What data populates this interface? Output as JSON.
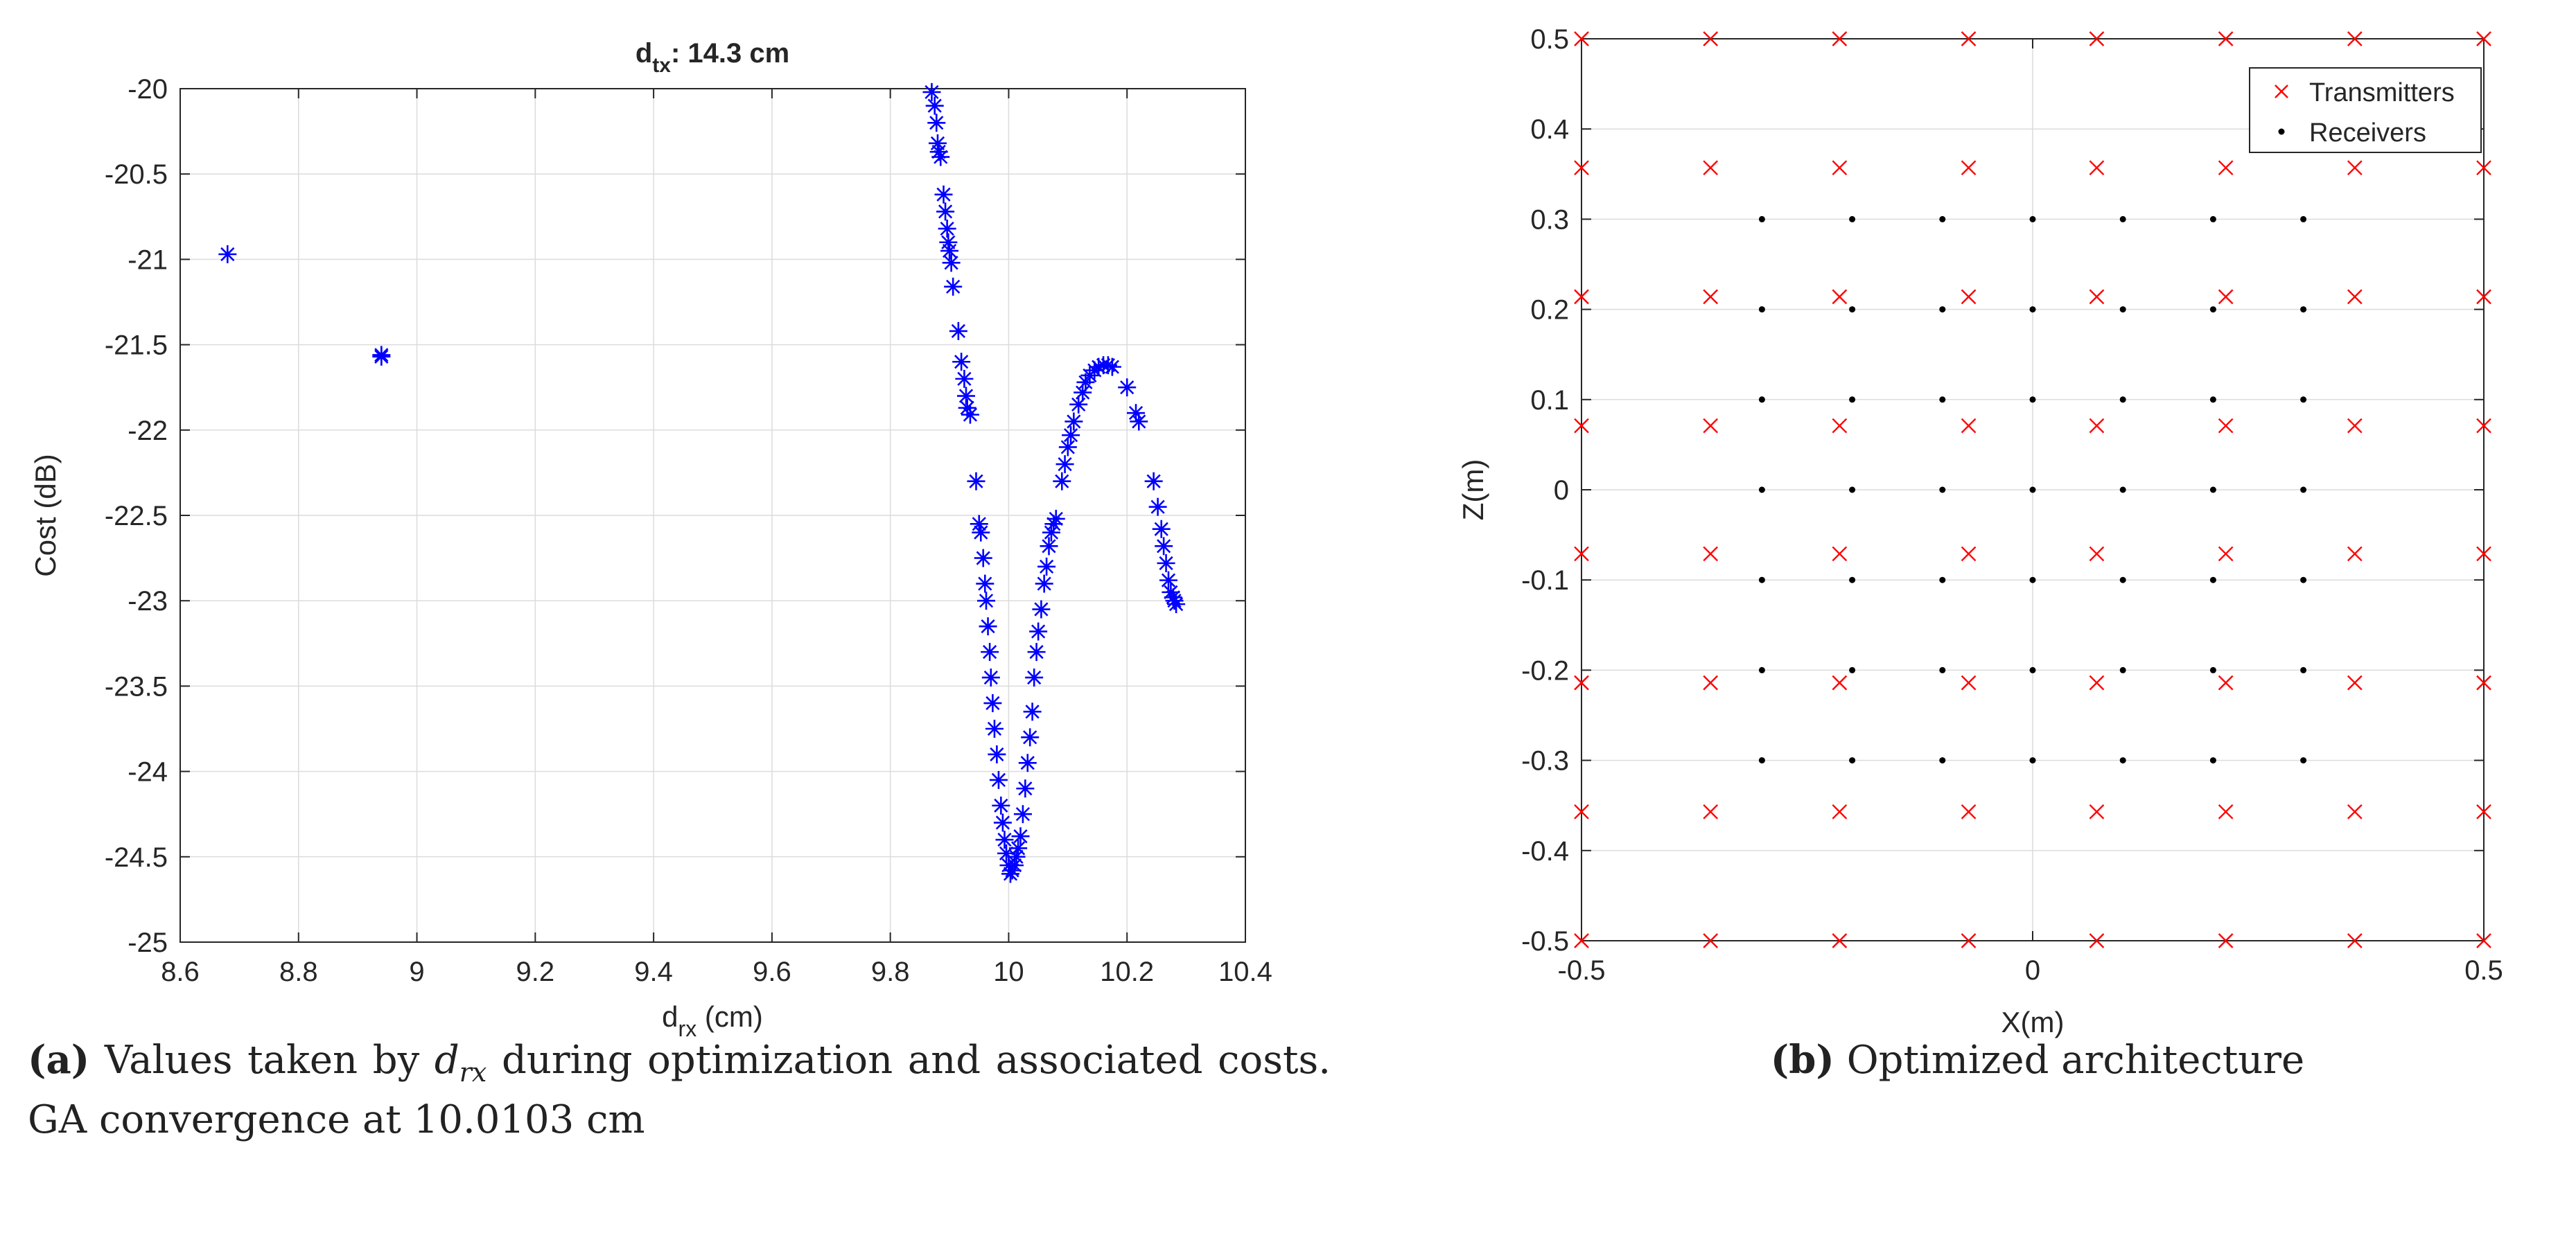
{
  "chart_data": [
    {
      "type": "scatter",
      "title_main": "d",
      "title_sub": "tx",
      "title_rest": ": 14.3 cm",
      "xlabel_main": "d",
      "xlabel_sub": "rx",
      "xlabel_rest": " (cm)",
      "ylabel": "Cost (dB)",
      "xlim": [
        8.6,
        10.4
      ],
      "ylim": [
        -25,
        -20
      ],
      "xticks": [
        "8.6",
        "8.8",
        "9",
        "9.2",
        "9.4",
        "9.6",
        "9.8",
        "10",
        "10.2",
        "10.4"
      ],
      "yticks": [
        "-20",
        "-20.5",
        "-21",
        "-21.5",
        "-22",
        "-22.5",
        "-23",
        "-23.5",
        "-24",
        "-24.5",
        "-25"
      ],
      "grid": true,
      "marker": "asterisk",
      "color": "#0000ff",
      "points": [
        [
          8.68,
          -20.97
        ],
        [
          8.94,
          -21.56
        ],
        [
          8.94,
          -21.57
        ],
        [
          9.87,
          -20.02
        ],
        [
          9.875,
          -20.1
        ],
        [
          9.878,
          -20.2
        ],
        [
          9.88,
          -20.32
        ],
        [
          9.882,
          -20.37
        ],
        [
          9.885,
          -20.4
        ],
        [
          9.89,
          -20.62
        ],
        [
          9.893,
          -20.72
        ],
        [
          9.896,
          -20.82
        ],
        [
          9.898,
          -20.9
        ],
        [
          9.9,
          -20.95
        ],
        [
          9.903,
          -21.02
        ],
        [
          9.906,
          -21.16
        ],
        [
          9.915,
          -21.42
        ],
        [
          9.92,
          -21.6
        ],
        [
          9.925,
          -21.7
        ],
        [
          9.928,
          -21.8
        ],
        [
          9.93,
          -21.87
        ],
        [
          9.935,
          -21.91
        ],
        [
          9.945,
          -22.3
        ],
        [
          9.95,
          -22.55
        ],
        [
          9.953,
          -22.6
        ],
        [
          9.957,
          -22.75
        ],
        [
          9.96,
          -22.9
        ],
        [
          9.962,
          -23.0
        ],
        [
          9.965,
          -23.15
        ],
        [
          9.968,
          -23.3
        ],
        [
          9.97,
          -23.45
        ],
        [
          9.973,
          -23.6
        ],
        [
          9.976,
          -23.75
        ],
        [
          9.98,
          -23.9
        ],
        [
          9.983,
          -24.05
        ],
        [
          9.987,
          -24.2
        ],
        [
          9.99,
          -24.3
        ],
        [
          9.993,
          -24.4
        ],
        [
          9.996,
          -24.48
        ],
        [
          10.0,
          -24.55
        ],
        [
          10.003,
          -24.6
        ],
        [
          10.006,
          -24.58
        ],
        [
          10.01,
          -24.55
        ],
        [
          10.013,
          -24.5
        ],
        [
          10.016,
          -24.45
        ],
        [
          10.02,
          -24.38
        ],
        [
          10.024,
          -24.25
        ],
        [
          10.028,
          -24.1
        ],
        [
          10.032,
          -23.95
        ],
        [
          10.036,
          -23.8
        ],
        [
          10.04,
          -23.65
        ],
        [
          10.043,
          -23.45
        ],
        [
          10.047,
          -23.3
        ],
        [
          10.05,
          -23.18
        ],
        [
          10.055,
          -23.05
        ],
        [
          10.06,
          -22.9
        ],
        [
          10.064,
          -22.8
        ],
        [
          10.068,
          -22.68
        ],
        [
          10.072,
          -22.6
        ],
        [
          10.076,
          -22.55
        ],
        [
          10.08,
          -22.52
        ],
        [
          10.09,
          -22.3
        ],
        [
          10.095,
          -22.2
        ],
        [
          10.1,
          -22.1
        ],
        [
          10.105,
          -22.03
        ],
        [
          10.11,
          -21.95
        ],
        [
          10.118,
          -21.85
        ],
        [
          10.125,
          -21.78
        ],
        [
          10.13,
          -21.72
        ],
        [
          10.137,
          -21.68
        ],
        [
          10.145,
          -21.65
        ],
        [
          10.152,
          -21.63
        ],
        [
          10.16,
          -21.62
        ],
        [
          10.168,
          -21.62
        ],
        [
          10.175,
          -21.63
        ],
        [
          10.2,
          -21.75
        ],
        [
          10.215,
          -21.9
        ],
        [
          10.22,
          -21.95
        ],
        [
          10.245,
          -22.3
        ],
        [
          10.252,
          -22.45
        ],
        [
          10.258,
          -22.58
        ],
        [
          10.262,
          -22.68
        ],
        [
          10.266,
          -22.78
        ],
        [
          10.27,
          -22.88
        ],
        [
          10.274,
          -22.95
        ],
        [
          10.278,
          -22.98
        ],
        [
          10.28,
          -23.0
        ],
        [
          10.283,
          -23.02
        ]
      ]
    },
    {
      "type": "scatter",
      "xlabel": "X(m)",
      "ylabel": "Z(m)",
      "xlim": [
        -0.5,
        0.5
      ],
      "ylim": [
        -0.5,
        0.5
      ],
      "xticks": [
        "-0.5",
        "0",
        "0.5"
      ],
      "yticks": [
        "0.5",
        "0.4",
        "0.3",
        "0.2",
        "0.1",
        "0",
        "-0.1",
        "-0.2",
        "-0.3",
        "-0.4",
        "-0.5"
      ],
      "grid": true,
      "legend": [
        "Transmitters",
        "Receivers"
      ],
      "legend_location": "top-right",
      "series": [
        {
          "name": "Transmitters",
          "marker": "x",
          "color": "#ff0000",
          "x": [
            -0.5,
            -0.357,
            -0.214,
            -0.071,
            0.071,
            0.214,
            0.357,
            0.5
          ],
          "y": [
            0.5,
            0.357,
            0.214,
            0.071,
            -0.071,
            -0.214,
            -0.357,
            -0.5
          ]
        },
        {
          "name": "Receivers",
          "marker": "dot",
          "color": "#000000",
          "x": [
            -0.3,
            -0.2,
            -0.1,
            0,
            0.1,
            0.2,
            0.3
          ],
          "y": [
            0.3,
            0.2,
            0.1,
            0,
            -0.1,
            -0.2,
            -0.3
          ]
        }
      ]
    }
  ],
  "captions": {
    "a_label": "(a)",
    "a_text_1": " Values taken by ",
    "a_var_main": "d",
    "a_var_sub": "rx",
    "a_text_2": " during optimization and associated costs. GA convergence at 10.0103 cm",
    "b_label": "(b)",
    "b_text": " Optimized architecture"
  }
}
